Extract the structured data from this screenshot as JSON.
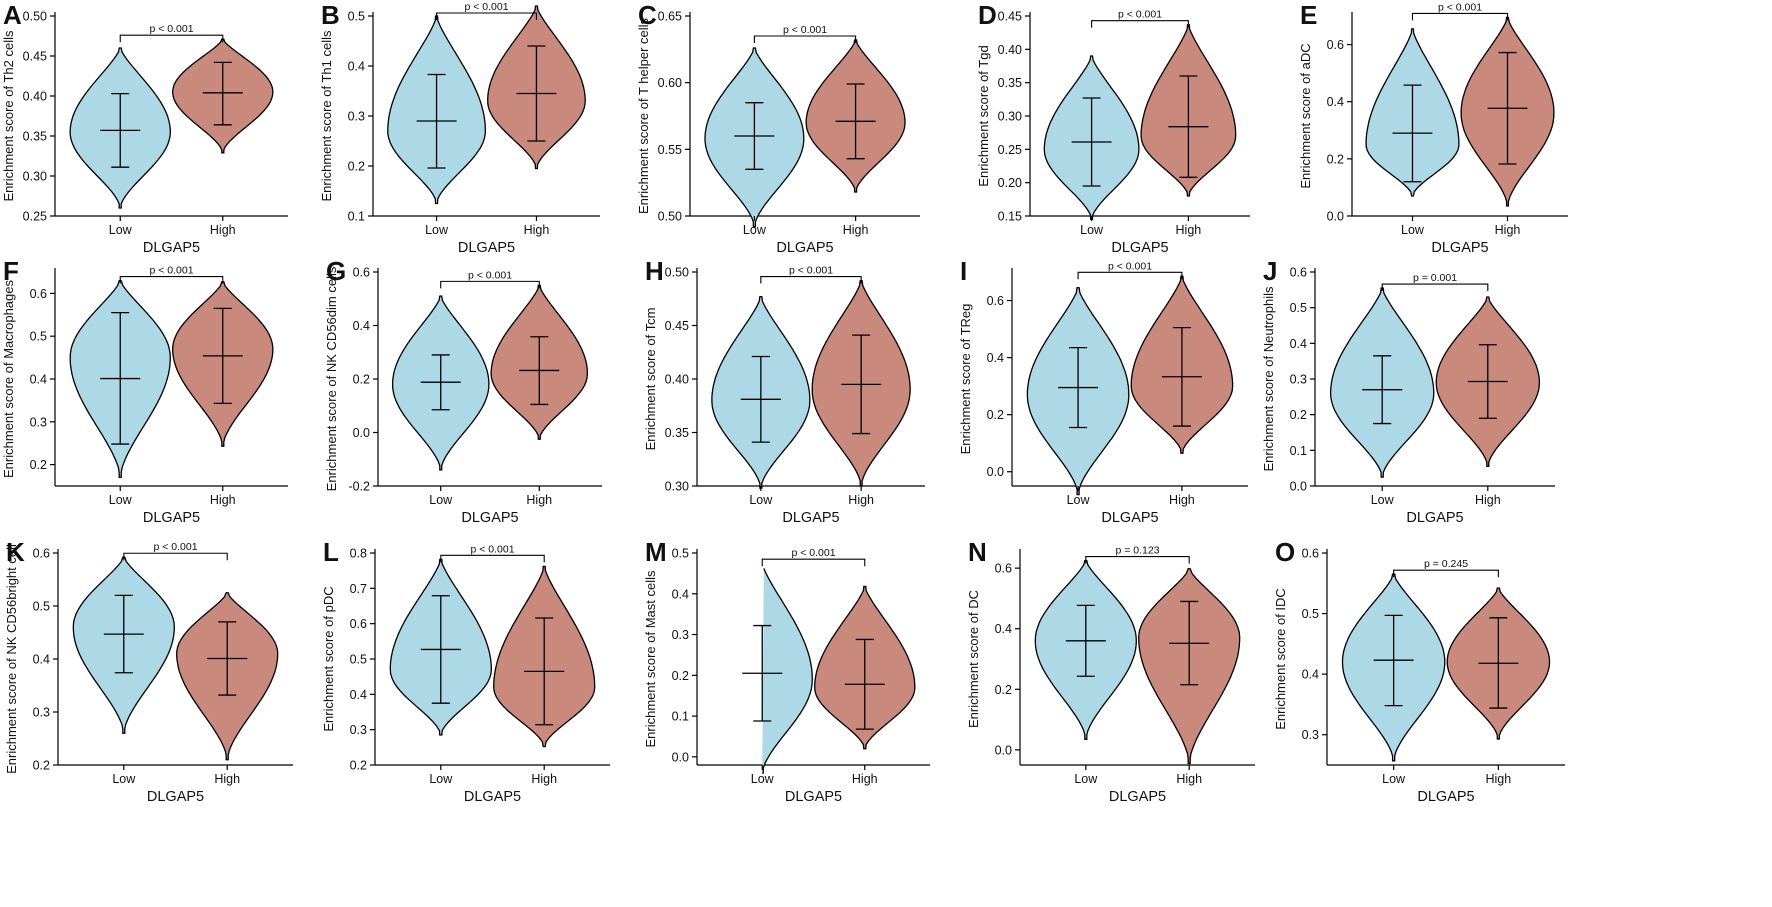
{
  "figure": {
    "xlabel": "DLGAP5",
    "group_labels": [
      "Low",
      "High"
    ]
  },
  "colors": {
    "low": "#add8e6",
    "high": "#c98a7d",
    "stroke": "#000000"
  },
  "chart_data": [
    {
      "letter": "A",
      "type": "violin",
      "ylabel": "Enrichment score of Th2 cells",
      "xlabel": "DLGAP5",
      "categories": [
        "Low",
        "High"
      ],
      "ylim": [
        0.25,
        0.5
      ],
      "yticks": [
        0.25,
        0.3,
        0.35,
        0.4,
        0.45,
        0.5
      ],
      "ytick_labels": [
        "0.25",
        "0.30",
        "0.35",
        "0.40",
        "0.45",
        "0.50"
      ],
      "pvalue": "p < 0.001",
      "groups": [
        {
          "name": "Low",
          "min": 0.26,
          "max": 0.46,
          "mode": 0.355,
          "q_low": 0.311,
          "median": 0.357,
          "q_high": 0.403
        },
        {
          "name": "High",
          "min": 0.329,
          "max": 0.471,
          "mode": 0.405,
          "q_low": 0.364,
          "median": 0.404,
          "q_high": 0.442
        }
      ]
    },
    {
      "letter": "B",
      "type": "violin",
      "ylabel": "Enrichment score of Th1 cells",
      "xlabel": "DLGAP5",
      "categories": [
        "Low",
        "High"
      ],
      "ylim": [
        0.1,
        0.5
      ],
      "yticks": [
        0.1,
        0.2,
        0.3,
        0.4,
        0.5
      ],
      "ytick_labels": [
        "0.1",
        "0.2",
        "0.3",
        "0.4",
        "0.5"
      ],
      "pvalue": "p < 0.001",
      "groups": [
        {
          "name": "Low",
          "min": 0.125,
          "max": 0.5,
          "mode": 0.27,
          "q_low": 0.196,
          "median": 0.29,
          "q_high": 0.383
        },
        {
          "name": "High",
          "min": 0.195,
          "max": 0.52,
          "mode": 0.33,
          "q_low": 0.25,
          "median": 0.345,
          "q_high": 0.44
        }
      ]
    },
    {
      "letter": "C",
      "type": "violin",
      "ylabel": "Enrichment score of T helper cells",
      "xlabel": "DLGAP5",
      "categories": [
        "Low",
        "High"
      ],
      "ylim": [
        0.5,
        0.65
      ],
      "yticks": [
        0.5,
        0.55,
        0.6,
        0.65
      ],
      "ytick_labels": [
        "0.50",
        "0.55",
        "0.60",
        "0.65"
      ],
      "pvalue": "p < 0.001",
      "groups": [
        {
          "name": "Low",
          "min": 0.492,
          "max": 0.626,
          "mode": 0.558,
          "q_low": 0.535,
          "median": 0.56,
          "q_high": 0.585
        },
        {
          "name": "High",
          "min": 0.518,
          "max": 0.632,
          "mode": 0.57,
          "q_low": 0.543,
          "median": 0.571,
          "q_high": 0.599
        }
      ]
    },
    {
      "letter": "D",
      "type": "violin",
      "ylabel": "Enrichment score of Tgd",
      "xlabel": "DLGAP5",
      "categories": [
        "Low",
        "High"
      ],
      "ylim": [
        0.15,
        0.45
      ],
      "yticks": [
        0.15,
        0.2,
        0.25,
        0.3,
        0.35,
        0.4,
        0.45
      ],
      "ytick_labels": [
        "0.15",
        "0.20",
        "0.25",
        "0.30",
        "0.35",
        "0.40",
        "0.45"
      ],
      "pvalue": "p < 0.001",
      "groups": [
        {
          "name": "Low",
          "min": 0.145,
          "max": 0.39,
          "mode": 0.25,
          "q_low": 0.195,
          "median": 0.261,
          "q_high": 0.327
        },
        {
          "name": "High",
          "min": 0.18,
          "max": 0.437,
          "mode": 0.27,
          "q_low": 0.208,
          "median": 0.284,
          "q_high": 0.36
        }
      ]
    },
    {
      "letter": "E",
      "type": "violin",
      "ylabel": "Enrichment score of aDC",
      "xlabel": "DLGAP5",
      "categories": [
        "Low",
        "High"
      ],
      "ylim": [
        0.0,
        0.7
      ],
      "yticks": [
        0.0,
        0.2,
        0.4,
        0.6
      ],
      "ytick_labels": [
        "0.0",
        "0.2",
        "0.4",
        "0.6"
      ],
      "pvalue": "p < 0.001",
      "groups": [
        {
          "name": "Low",
          "min": 0.07,
          "max": 0.655,
          "mode": 0.25,
          "q_low": 0.12,
          "median": 0.29,
          "q_high": 0.458
        },
        {
          "name": "High",
          "min": 0.035,
          "max": 0.695,
          "mode": 0.36,
          "q_low": 0.182,
          "median": 0.377,
          "q_high": 0.572
        }
      ]
    },
    {
      "letter": "F",
      "type": "violin",
      "ylabel": "Enrichment score of Macrophages",
      "xlabel": "DLGAP5",
      "categories": [
        "Low",
        "High"
      ],
      "ylim": [
        0.15,
        0.65
      ],
      "yticks": [
        0.2,
        0.3,
        0.4,
        0.5,
        0.6
      ],
      "ytick_labels": [
        "0.2",
        "0.3",
        "0.4",
        "0.5",
        "0.6"
      ],
      "pvalue": "p < 0.001",
      "groups": [
        {
          "name": "Low",
          "min": 0.17,
          "max": 0.63,
          "mode": 0.45,
          "q_low": 0.248,
          "median": 0.401,
          "q_high": 0.555
        },
        {
          "name": "High",
          "min": 0.243,
          "max": 0.627,
          "mode": 0.47,
          "q_low": 0.343,
          "median": 0.454,
          "q_high": 0.565
        }
      ]
    },
    {
      "letter": "G",
      "type": "violin",
      "ylabel": "Enrichment score of NK CD56dim cells",
      "xlabel": "DLGAP5",
      "categories": [
        "Low",
        "High"
      ],
      "ylim": [
        -0.2,
        0.6
      ],
      "yticks": [
        -0.2,
        0.0,
        0.2,
        0.4,
        0.6
      ],
      "ytick_labels": [
        "-0.2",
        "0.0",
        "0.2",
        "0.4",
        "0.6"
      ],
      "pvalue": "p < 0.001",
      "groups": [
        {
          "name": "Low",
          "min": -0.14,
          "max": 0.51,
          "mode": 0.18,
          "q_low": 0.085,
          "median": 0.188,
          "q_high": 0.29
        },
        {
          "name": "High",
          "min": -0.025,
          "max": 0.55,
          "mode": 0.22,
          "q_low": 0.105,
          "median": 0.232,
          "q_high": 0.358
        }
      ]
    },
    {
      "letter": "H",
      "type": "violin",
      "ylabel": "Enrichment score of Tcm",
      "xlabel": "DLGAP5",
      "categories": [
        "Low",
        "High"
      ],
      "ylim": [
        0.3,
        0.5
      ],
      "yticks": [
        0.3,
        0.35,
        0.4,
        0.45,
        0.5
      ],
      "ytick_labels": [
        "0.30",
        "0.35",
        "0.40",
        "0.45",
        "0.50"
      ],
      "pvalue": "p < 0.001",
      "groups": [
        {
          "name": "Low",
          "min": 0.298,
          "max": 0.477,
          "mode": 0.38,
          "q_low": 0.341,
          "median": 0.381,
          "q_high": 0.421
        },
        {
          "name": "High",
          "min": 0.3,
          "max": 0.492,
          "mode": 0.39,
          "q_low": 0.349,
          "median": 0.395,
          "q_high": 0.441
        }
      ]
    },
    {
      "letter": "I",
      "type": "violin",
      "ylabel": "Enrichment score of TReg",
      "xlabel": "DLGAP5",
      "categories": [
        "Low",
        "High"
      ],
      "ylim": [
        -0.05,
        0.7
      ],
      "yticks": [
        0.0,
        0.2,
        0.4,
        0.6
      ],
      "ytick_labels": [
        "0.0",
        "0.2",
        "0.4",
        "0.6"
      ],
      "pvalue": "p < 0.001",
      "groups": [
        {
          "name": "Low",
          "min": -0.08,
          "max": 0.645,
          "mode": 0.27,
          "q_low": 0.155,
          "median": 0.295,
          "q_high": 0.435
        },
        {
          "name": "High",
          "min": 0.065,
          "max": 0.685,
          "mode": 0.3,
          "q_low": 0.16,
          "median": 0.333,
          "q_high": 0.505
        }
      ]
    },
    {
      "letter": "J",
      "type": "violin",
      "ylabel": "Enrichment score of Neutrophils",
      "xlabel": "DLGAP5",
      "categories": [
        "Low",
        "High"
      ],
      "ylim": [
        0.0,
        0.6
      ],
      "yticks": [
        0.0,
        0.1,
        0.2,
        0.3,
        0.4,
        0.5,
        0.6
      ],
      "ytick_labels": [
        "0.0",
        "0.1",
        "0.2",
        "0.3",
        "0.4",
        "0.5",
        "0.6"
      ],
      "pvalue": "p = 0.001",
      "groups": [
        {
          "name": "Low",
          "min": 0.025,
          "max": 0.555,
          "mode": 0.26,
          "q_low": 0.175,
          "median": 0.27,
          "q_high": 0.365
        },
        {
          "name": "High",
          "min": 0.055,
          "max": 0.53,
          "mode": 0.29,
          "q_low": 0.19,
          "median": 0.293,
          "q_high": 0.396
        }
      ]
    },
    {
      "letter": "K",
      "type": "violin",
      "ylabel": "Enrichment score of NK CD56bright cell",
      "xlabel": "DLGAP5",
      "categories": [
        "Low",
        "High"
      ],
      "ylim": [
        0.2,
        0.6
      ],
      "yticks": [
        0.2,
        0.3,
        0.4,
        0.5,
        0.6
      ],
      "ytick_labels": [
        "0.2",
        "0.3",
        "0.4",
        "0.5",
        "0.6"
      ],
      "pvalue": "p < 0.001",
      "groups": [
        {
          "name": "Low",
          "min": 0.26,
          "max": 0.592,
          "mode": 0.46,
          "q_low": 0.374,
          "median": 0.447,
          "q_high": 0.52
        },
        {
          "name": "High",
          "min": 0.21,
          "max": 0.525,
          "mode": 0.41,
          "q_low": 0.332,
          "median": 0.401,
          "q_high": 0.47
        }
      ]
    },
    {
      "letter": "L",
      "type": "violin",
      "ylabel": "Enrichment score of pDC",
      "xlabel": "DLGAP5",
      "categories": [
        "Low",
        "High"
      ],
      "ylim": [
        0.2,
        0.8
      ],
      "yticks": [
        0.2,
        0.3,
        0.4,
        0.5,
        0.6,
        0.7,
        0.8
      ],
      "ytick_labels": [
        "0.2",
        "0.3",
        "0.4",
        "0.5",
        "0.6",
        "0.7",
        "0.8"
      ],
      "pvalue": "p < 0.001",
      "groups": [
        {
          "name": "Low",
          "min": 0.285,
          "max": 0.782,
          "mode": 0.47,
          "q_low": 0.375,
          "median": 0.527,
          "q_high": 0.679
        },
        {
          "name": "High",
          "min": 0.252,
          "max": 0.762,
          "mode": 0.42,
          "q_low": 0.314,
          "median": 0.465,
          "q_high": 0.616
        }
      ]
    },
    {
      "letter": "M",
      "type": "violin",
      "ylabel": "Enrichment score of Mast cells",
      "xlabel": "DLGAP5",
      "categories": [
        "Low",
        "High"
      ],
      "ylim": [
        -0.02,
        0.5
      ],
      "yticks": [
        0.0,
        0.1,
        0.2,
        0.3,
        0.4,
        0.5
      ],
      "ytick_labels": [
        "0.0",
        "0.1",
        "0.2",
        "0.3",
        "0.4",
        "0.5"
      ],
      "pvalue": "p < 0.001",
      "groups": [
        {
          "name": "Low",
          "min": -0.04,
          "max": 0.475,
          "mode": 0.19,
          "q_low": 0.088,
          "median": 0.205,
          "q_high": 0.322
        },
        {
          "name": "High",
          "min": 0.02,
          "max": 0.418,
          "mode": 0.17,
          "q_low": 0.068,
          "median": 0.178,
          "q_high": 0.288
        }
      ]
    },
    {
      "letter": "N",
      "type": "violin",
      "ylabel": "Enrichment score of DC",
      "xlabel": "DLGAP5",
      "categories": [
        "Low",
        "High"
      ],
      "ylim": [
        -0.05,
        0.65
      ],
      "yticks": [
        0.0,
        0.2,
        0.4,
        0.6
      ],
      "ytick_labels": [
        "0.0",
        "0.2",
        "0.4",
        "0.6"
      ],
      "pvalue": "p = 0.123",
      "groups": [
        {
          "name": "Low",
          "min": 0.035,
          "max": 0.625,
          "mode": 0.36,
          "q_low": 0.243,
          "median": 0.36,
          "q_high": 0.477
        },
        {
          "name": "High",
          "min": -0.045,
          "max": 0.598,
          "mode": 0.37,
          "q_low": 0.215,
          "median": 0.352,
          "q_high": 0.49
        }
      ]
    },
    {
      "letter": "O",
      "type": "violin",
      "ylabel": "Enrichment score of IDC",
      "xlabel": "DLGAP5",
      "categories": [
        "Low",
        "High"
      ],
      "ylim": [
        0.25,
        0.6
      ],
      "yticks": [
        0.3,
        0.4,
        0.5,
        0.6
      ],
      "ytick_labels": [
        "0.3",
        "0.4",
        "0.5",
        "0.6"
      ],
      "pvalue": "p = 0.245",
      "groups": [
        {
          "name": "Low",
          "min": 0.257,
          "max": 0.565,
          "mode": 0.42,
          "q_low": 0.348,
          "median": 0.423,
          "q_high": 0.497
        },
        {
          "name": "High",
          "min": 0.293,
          "max": 0.542,
          "mode": 0.42,
          "q_low": 0.344,
          "median": 0.418,
          "q_high": 0.493
        }
      ]
    }
  ]
}
